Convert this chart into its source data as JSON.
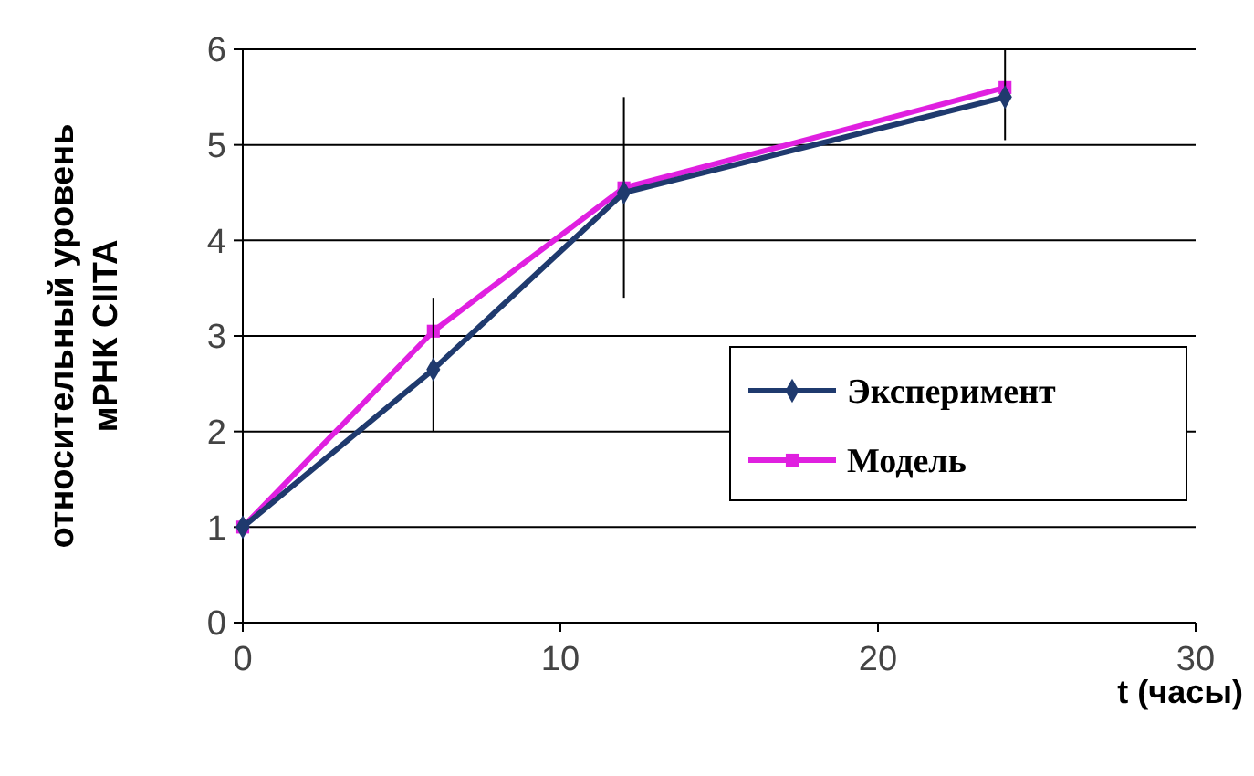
{
  "chart_data": {
    "type": "line",
    "ylabel": "относительный уровень\nмРНК CIITA",
    "xlabel": "t (часы)",
    "xlim": [
      0,
      30
    ],
    "xticks": [
      0,
      10,
      20,
      30
    ],
    "ylim": [
      0,
      6
    ],
    "yticks": [
      0,
      1,
      2,
      3,
      4,
      5,
      6
    ],
    "grid": "y",
    "legend": "right",
    "x": [
      0,
      6,
      12,
      24
    ],
    "series": [
      {
        "name": "Эксперимент",
        "color": "#1f3a6e",
        "marker": "diamond",
        "values": [
          1,
          2.65,
          4.5,
          5.5
        ],
        "errors": [
          null,
          [
            2.0,
            3.4
          ],
          [
            3.4,
            5.5
          ],
          [
            5.05,
            6.0
          ]
        ]
      },
      {
        "name": "Модель",
        "color": "#e020e0",
        "marker": "square",
        "values": [
          1,
          3.05,
          4.55,
          5.6
        ]
      }
    ]
  }
}
